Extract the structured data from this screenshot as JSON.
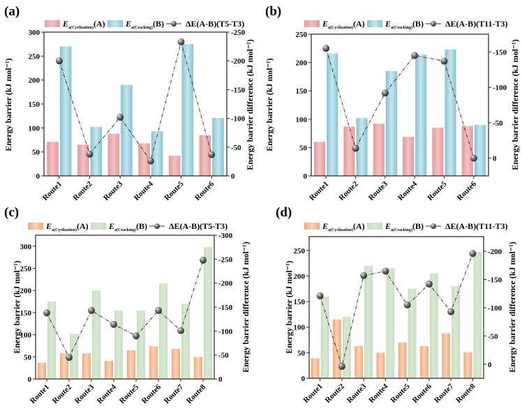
{
  "figure": {
    "y_left_label": "Energy barrier (kJ mol⁻¹)",
    "y_right_label": "Energy barrier difference (kJ mol⁻¹)"
  },
  "chart_data": [
    {
      "panel": "(a)",
      "type": "bar",
      "colors": {
        "A": "#e9a3a5",
        "B": "#8fcad9"
      },
      "legend": [
        {
          "main": "E",
          "sub": "a(Cyclization)",
          "tail": "(A)"
        },
        {
          "main": "E",
          "sub": "a(Cracking)",
          "tail": "(B)"
        },
        {
          "main": "ΔE(A-B)(T5-T3)",
          "sub": "",
          "tail": ""
        }
      ],
      "legend_position": "top",
      "categories": [
        "Route1",
        "Route2",
        "Route3",
        "Route4",
        "Route5",
        "Route6"
      ],
      "series": [
        {
          "name": "Ea(Cyclization)(A)",
          "axis": "left",
          "kind": "bar",
          "values": [
            71,
            65,
            88,
            68,
            42,
            85
          ]
        },
        {
          "name": "Ea(Cracking)(B)",
          "axis": "left",
          "kind": "bar",
          "values": [
            270,
            102,
            190,
            93,
            275,
            121
          ]
        },
        {
          "name": "ΔE(A-B)(T5-T3)",
          "axis": "right",
          "kind": "line",
          "values": [
            -200,
            -38,
            -102,
            -26,
            -233,
            -37
          ]
        }
      ],
      "ylim": [
        0,
        300
      ],
      "yticks": [
        0,
        50,
        100,
        150,
        200,
        250,
        300
      ],
      "y2lim": [
        0,
        -250
      ],
      "y2ticks": [
        0,
        -50,
        -100,
        -150,
        -200,
        -250
      ],
      "ylabel": "Energy barrier (kJ mol⁻¹)",
      "y2label": "Energy barrier difference (kJ mol⁻¹)",
      "grid": false
    },
    {
      "panel": "(b)",
      "type": "bar",
      "colors": {
        "A": "#e9a3a5",
        "B": "#8fcad9"
      },
      "legend": [
        {
          "main": "E",
          "sub": "a(Cyclization)",
          "tail": "(A)"
        },
        {
          "main": "E",
          "sub": "a(Cracking)",
          "tail": "(B)"
        },
        {
          "main": "ΔE(A-B)(T11-T3)",
          "sub": "",
          "tail": ""
        }
      ],
      "legend_position": "top",
      "categories": [
        "Route1",
        "Route2",
        "Route3",
        "Route4",
        "Route5",
        "Route6"
      ],
      "series": [
        {
          "name": "Ea(Cyclization)(A)",
          "axis": "left",
          "kind": "bar",
          "values": [
            60,
            87,
            92,
            69,
            85,
            88
          ]
        },
        {
          "name": "Ea(Cracking)(B)",
          "axis": "left",
          "kind": "bar",
          "values": [
            216,
            102,
            185,
            214,
            223,
            90
          ]
        },
        {
          "name": "ΔE(A-B)(T11-T3)",
          "axis": "right",
          "kind": "line",
          "values": [
            -155,
            -14,
            -92,
            -145,
            -137,
            0
          ]
        }
      ],
      "ylim": [
        0,
        250
      ],
      "yticks": [
        0,
        50,
        100,
        150,
        200,
        250
      ],
      "y2lim": [
        25,
        -175
      ],
      "y2ticks": [
        0,
        -50,
        -100,
        -150
      ],
      "ylabel": "Energy barrier (kJ mol⁻¹)",
      "y2label": "Energy barrier difference (kJ mol⁻¹)",
      "grid": false
    },
    {
      "panel": "(c)",
      "type": "bar",
      "colors": {
        "A": "#f5b48a",
        "B": "#c9dfc0"
      },
      "legend": [
        {
          "main": "E",
          "sub": "a(Cyclization)",
          "tail": "(A)"
        },
        {
          "main": "E",
          "sub": "a(Cracking)",
          "tail": "(B)"
        },
        {
          "main": "ΔE(A-B)(T5-T3)",
          "sub": "",
          "tail": ""
        }
      ],
      "legend_position": "top",
      "categories": [
        "Route1",
        "Route2",
        "Route3",
        "Route4",
        "Route5",
        "Route6",
        "Route7",
        "Route8"
      ],
      "series": [
        {
          "name": "Ea(Cyclization)(A)",
          "axis": "left",
          "kind": "bar",
          "values": [
            37,
            58,
            58,
            41,
            65,
            74,
            68,
            50
          ]
        },
        {
          "name": "Ea(Cracking)(B)",
          "axis": "left",
          "kind": "bar",
          "values": [
            175,
            102,
            200,
            155,
            155,
            216,
            170,
            298
          ]
        },
        {
          "name": "ΔE(A-B)(T5-T3)",
          "axis": "right",
          "kind": "line",
          "values": [
            -138,
            -45,
            -143,
            -114,
            -90,
            -143,
            -101,
            -248
          ]
        }
      ],
      "ylim": [
        0,
        325
      ],
      "yticks": [
        0,
        50,
        100,
        150,
        200,
        250,
        300
      ],
      "y2lim": [
        0,
        -300
      ],
      "y2ticks": [
        0,
        -50,
        -100,
        -150,
        -200,
        -250,
        -300
      ],
      "ylabel": "Energy barrier (kJ mol⁻¹)",
      "y2label": "Energy barrier difference (kJ mol⁻¹)",
      "grid": false
    },
    {
      "panel": "(d)",
      "type": "bar",
      "colors": {
        "A": "#f5b48a",
        "B": "#c9dfc0"
      },
      "legend": [
        {
          "main": "E",
          "sub": "a(Cyclization)",
          "tail": "(A)"
        },
        {
          "main": "E",
          "sub": "a(Cracking)",
          "tail": "(B)"
        },
        {
          "main": "ΔE(A-B)(T11-T3)",
          "sub": "",
          "tail": ""
        }
      ],
      "legend_position": "top",
      "categories": [
        "Route1",
        "Route2",
        "Route3",
        "Route4",
        "Route5",
        "Route6",
        "Route7",
        "Route8"
      ],
      "series": [
        {
          "name": "Ea(Cyclization)(A)",
          "axis": "left",
          "kind": "bar",
          "values": [
            39,
            115,
            63,
            50,
            70,
            63,
            88,
            51
          ]
        },
        {
          "name": "Ea(Cracking)(B)",
          "axis": "left",
          "kind": "bar",
          "values": [
            160,
            120,
            220,
            215,
            175,
            205,
            180,
            247
          ]
        },
        {
          "name": "ΔE(A-B)(T11-T3)",
          "axis": "right",
          "kind": "line",
          "values": [
            -121,
            4,
            -157,
            -165,
            -105,
            -142,
            -93,
            -196
          ]
        }
      ],
      "ylim": [
        0,
        277
      ],
      "yticks": [
        0,
        50,
        100,
        150,
        200,
        250
      ],
      "y2lim": [
        25,
        -226
      ],
      "y2ticks": [
        0,
        -50,
        -100,
        -150,
        -200
      ],
      "ylabel": "Energy barrier (kJ mol⁻¹)",
      "y2label": "Energy barrier difference (kJ mol⁻¹)",
      "grid": false
    }
  ]
}
